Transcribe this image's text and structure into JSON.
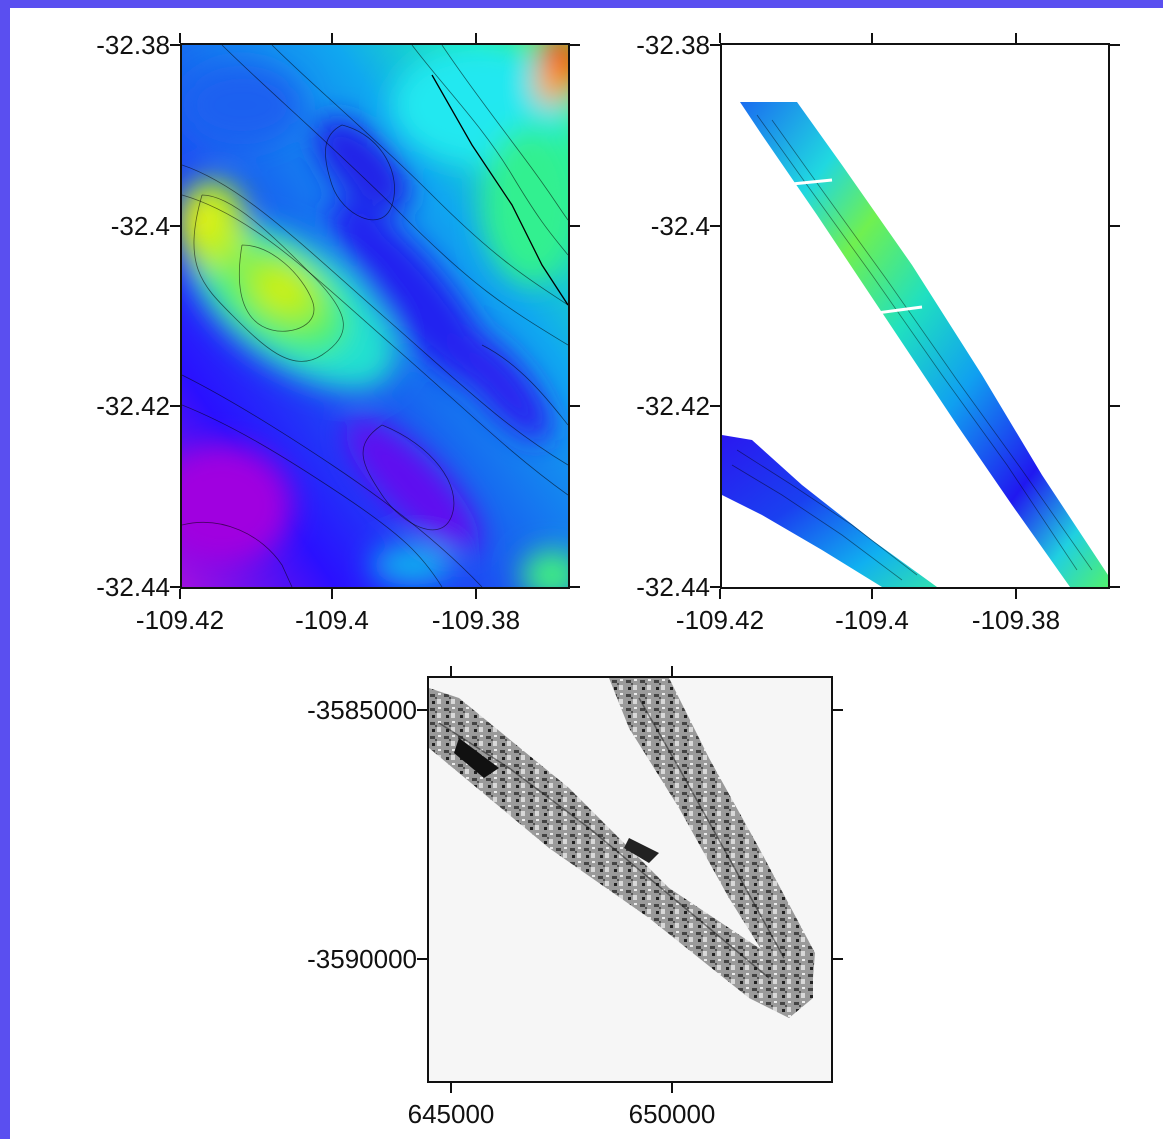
{
  "maps": [
    {
      "name": "bathymetry-grid",
      "kind": "full-coverage color contour grid",
      "y_ticks": [
        "-32.38",
        "-32.4",
        "-32.42",
        "-32.44"
      ],
      "x_ticks": [
        "-109.42",
        "-109.4",
        "-109.38"
      ],
      "y_range": [
        -32.44,
        -32.38
      ],
      "x_range": [
        -109.42,
        -109.369
      ],
      "palette": [
        "#a000e0",
        "#2010ff",
        "#1a5cf0",
        "#0ab4f0",
        "#12e0d0",
        "#40f080",
        "#a8f020",
        "#ffe000",
        "#ff4000"
      ]
    },
    {
      "name": "swath-tracks",
      "kind": "color contour swath tracks on white",
      "y_ticks": [
        "-32.38",
        "-32.4",
        "-32.42",
        "-32.44"
      ],
      "x_ticks": [
        "-109.42",
        "-109.4",
        "-109.38"
      ],
      "y_range": [
        -32.44,
        -32.38
      ],
      "x_range": [
        -109.42,
        -109.369
      ]
    },
    {
      "name": "sidescan-mosaic",
      "kind": "grayscale sidescan mosaic",
      "y_ticks": [
        "-3585000",
        "-3590000"
      ],
      "x_ticks": [
        "645000",
        "650000"
      ]
    }
  ]
}
